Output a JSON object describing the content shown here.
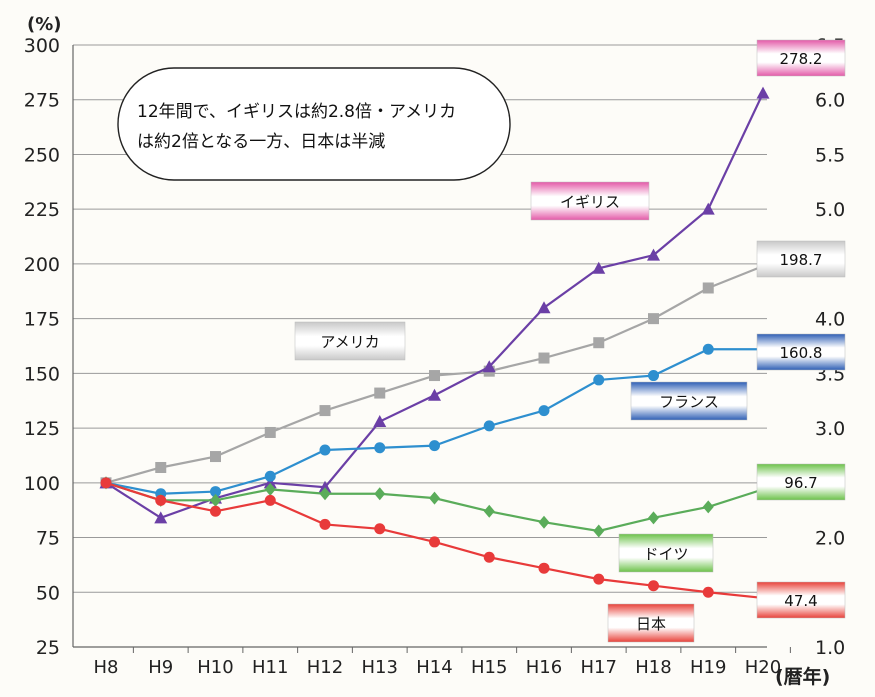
{
  "chart_data": {
    "type": "line",
    "y_unit_label": "(%)",
    "x_unit_label": "(暦年)",
    "categories": [
      "H8",
      "H9",
      "H10",
      "H11",
      "H12",
      "H13",
      "H14",
      "H15",
      "H16",
      "H17",
      "H18",
      "H19",
      "H20"
    ],
    "ylim": [
      25,
      300
    ],
    "yticks": [
      25,
      50,
      75,
      100,
      125,
      150,
      175,
      200,
      225,
      250,
      275,
      300
    ],
    "y2lim": [
      1.0,
      6.5
    ],
    "y2ticks": [
      "1.0",
      "1.5",
      "2.0",
      "2.5",
      "3.0",
      "3.5",
      "4.0",
      "4.5",
      "5.0",
      "5.5",
      "6.0",
      "6.5"
    ],
    "grid": true,
    "annotation_lines": [
      "12年間で、イギリスは約2.8倍・アメリカ",
      "は約2倍となる一方、日本は半減"
    ],
    "series": [
      {
        "name": "アメリカ",
        "color": "#a6a6a6",
        "marker": "square",
        "values": [
          100,
          107,
          112,
          123,
          133,
          141,
          149,
          151,
          157,
          164,
          175,
          189,
          199
        ],
        "end_label": "198.7",
        "label_color": "#c8c8c8"
      },
      {
        "name": "イギリス",
        "color": "#6b3fa6",
        "marker": "triangle",
        "values": [
          100,
          84,
          93,
          100,
          98,
          128,
          140,
          153,
          180,
          198,
          204,
          225,
          278
        ],
        "end_label": "278.2",
        "label_color": "#e35aa8"
      },
      {
        "name": "フランス",
        "color": "#2e8fcf",
        "marker": "circle",
        "values": [
          100,
          95,
          96,
          103,
          115,
          116,
          117,
          126,
          133,
          147,
          149,
          161,
          161
        ],
        "end_label": "160.8",
        "label_color": "#2f5fb5"
      },
      {
        "name": "ドイツ",
        "color": "#5aac5a",
        "marker": "diamond",
        "values": [
          100,
          92,
          92,
          97,
          95,
          95,
          93,
          87,
          82,
          78,
          84,
          89,
          97
        ],
        "end_label": "96.7",
        "label_color": "#6cc24a"
      },
      {
        "name": "日本",
        "color": "#e83a3a",
        "marker": "circle",
        "values": [
          100,
          92,
          87,
          92,
          81,
          79,
          73,
          66,
          61,
          56,
          53,
          50,
          47.4
        ],
        "end_label": "47.4",
        "label_color": "#e8423a"
      }
    ]
  }
}
